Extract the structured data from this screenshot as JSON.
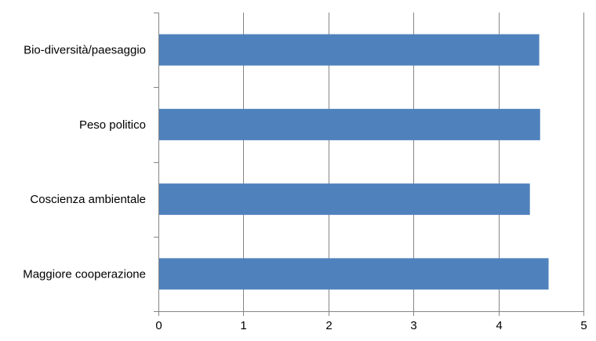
{
  "chart_data": {
    "type": "bar",
    "orientation": "horizontal",
    "categories": [
      "Bio-diversità/paesaggio",
      "Peso politico",
      "Coscienza ambientale",
      "Maggiore cooperazione"
    ],
    "values": [
      4.48,
      4.49,
      4.37,
      4.59
    ],
    "xlim": [
      0,
      5
    ],
    "xticks": [
      "0",
      "1",
      "2",
      "3",
      "4",
      "5"
    ],
    "grid": true,
    "legend": "none",
    "title": "",
    "xlabel": "",
    "ylabel": "",
    "colors": {
      "bar": "#4f81bd",
      "grid": "#868686",
      "axis": "#868686"
    }
  }
}
